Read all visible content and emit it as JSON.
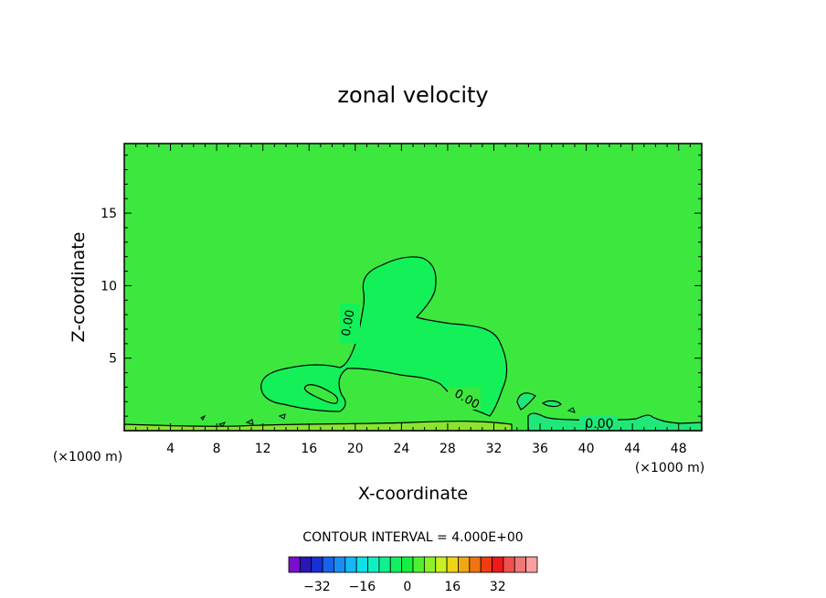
{
  "chart_data": {
    "type": "contour",
    "title": "zonal velocity",
    "xlabel": "X-coordinate",
    "ylabel": "Z-coordinate",
    "x_unit_left": "(×1000 m)",
    "x_unit_right": "(×1000 m)",
    "xlim": [
      0,
      50
    ],
    "ylim": [
      0,
      19.8
    ],
    "x_ticks": [
      "4",
      "8",
      "12",
      "16",
      "20",
      "24",
      "28",
      "32",
      "36",
      "40",
      "44",
      "48"
    ],
    "y_ticks": [
      "5",
      "10",
      "15"
    ],
    "contour_labels": [
      "0.00",
      "0.00",
      "0.00"
    ],
    "contour_interval_text": "CONTOUR INTERVAL = 4.000E+00",
    "colorbar_ticks": [
      "-32",
      "-16",
      "0",
      "16",
      "32"
    ],
    "colorbar_colors": [
      "#7a0ecd",
      "#2a16b8",
      "#1a2ed8",
      "#1a62e8",
      "#1a8ef0",
      "#14b8f8",
      "#10e0ea",
      "#0ef0c0",
      "#10f08c",
      "#12f060",
      "#12f040",
      "#50f030",
      "#8cf028",
      "#c8f020",
      "#f0d418",
      "#f0a812",
      "#f07410",
      "#f03c10",
      "#f01818",
      "#f05050",
      "#f07878",
      "#f8a0a0"
    ],
    "field_colors": {
      "background": "#3ce83e",
      "region_inner": "#14f058",
      "region_bottom_band": "#8ae430",
      "region_right": "#20e878"
    }
  }
}
